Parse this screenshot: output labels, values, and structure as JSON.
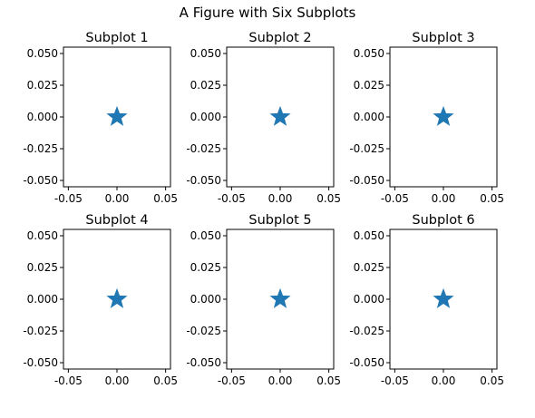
{
  "figure": {
    "suptitle": "A Figure with Six Subplots"
  },
  "chart_data": [
    {
      "type": "scatter",
      "title": "Subplot 1",
      "x": [
        0
      ],
      "y": [
        0
      ],
      "marker": "star",
      "color": "#1f77b4",
      "xlim": [
        -0.055,
        0.055
      ],
      "ylim": [
        -0.055,
        0.055
      ],
      "xticks": [
        "-0.05",
        "0.00",
        "0.05"
      ],
      "yticks": [
        "0.050",
        "0.025",
        "0.000",
        "-0.025",
        "-0.050"
      ],
      "grid": false
    },
    {
      "type": "scatter",
      "title": "Subplot 2",
      "x": [
        0
      ],
      "y": [
        0
      ],
      "marker": "star",
      "color": "#1f77b4",
      "xlim": [
        -0.055,
        0.055
      ],
      "ylim": [
        -0.055,
        0.055
      ],
      "xticks": [
        "-0.05",
        "0.00",
        "0.05"
      ],
      "yticks": [
        "0.050",
        "0.025",
        "0.000",
        "-0.025",
        "-0.050"
      ],
      "grid": false
    },
    {
      "type": "scatter",
      "title": "Subplot 3",
      "x": [
        0
      ],
      "y": [
        0
      ],
      "marker": "star",
      "color": "#1f77b4",
      "xlim": [
        -0.055,
        0.055
      ],
      "ylim": [
        -0.055,
        0.055
      ],
      "xticks": [
        "-0.05",
        "0.00",
        "0.05"
      ],
      "yticks": [
        "0.050",
        "0.025",
        "0.000",
        "-0.025",
        "-0.050"
      ],
      "grid": false
    },
    {
      "type": "scatter",
      "title": "Subplot 4",
      "x": [
        0
      ],
      "y": [
        0
      ],
      "marker": "star",
      "color": "#1f77b4",
      "xlim": [
        -0.055,
        0.055
      ],
      "ylim": [
        -0.055,
        0.055
      ],
      "xticks": [
        "-0.05",
        "0.00",
        "0.05"
      ],
      "yticks": [
        "0.050",
        "0.025",
        "0.000",
        "-0.025",
        "-0.050"
      ],
      "grid": false
    },
    {
      "type": "scatter",
      "title": "Subplot 5",
      "x": [
        0
      ],
      "y": [
        0
      ],
      "marker": "star",
      "color": "#1f77b4",
      "xlim": [
        -0.055,
        0.055
      ],
      "ylim": [
        -0.055,
        0.055
      ],
      "xticks": [
        "-0.05",
        "0.00",
        "0.05"
      ],
      "yticks": [
        "0.050",
        "0.025",
        "0.000",
        "-0.025",
        "-0.050"
      ],
      "grid": false
    },
    {
      "type": "scatter",
      "title": "Subplot 6",
      "x": [
        0
      ],
      "y": [
        0
      ],
      "marker": "star",
      "color": "#1f77b4",
      "xlim": [
        -0.055,
        0.055
      ],
      "ylim": [
        -0.055,
        0.055
      ],
      "xticks": [
        "-0.05",
        "0.00",
        "0.05"
      ],
      "yticks": [
        "0.050",
        "0.025",
        "0.000",
        "-0.025",
        "-0.050"
      ],
      "grid": false
    }
  ]
}
